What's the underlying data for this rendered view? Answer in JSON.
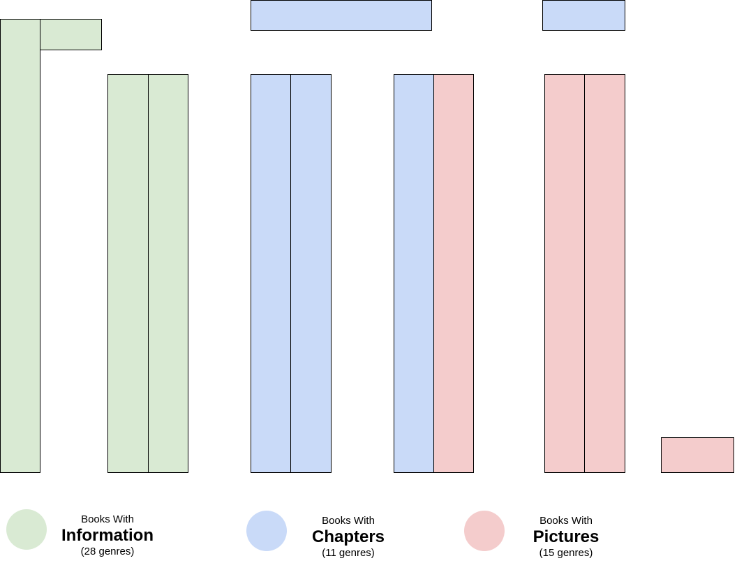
{
  "colors": {
    "information": "#d9ead3",
    "chapters": "#c9daf8",
    "pictures": "#f4cccc",
    "outline": "#000000"
  },
  "legend": [
    {
      "key": "information",
      "prefix": "Books With",
      "name": "Information",
      "count": "(28 genres)"
    },
    {
      "key": "chapters",
      "prefix": "Books With",
      "name": "Chapters",
      "count": "(11 genres)"
    },
    {
      "key": "pictures",
      "prefix": "Books With",
      "name": "Pictures",
      "count": "(15 genres)"
    }
  ]
}
